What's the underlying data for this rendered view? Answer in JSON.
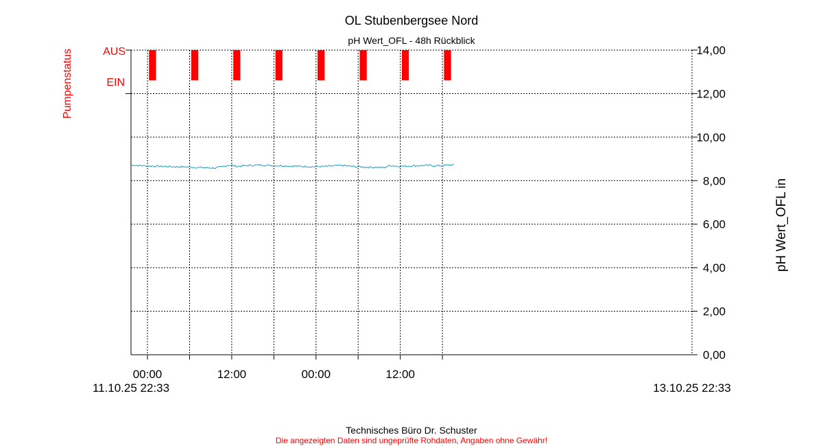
{
  "chart_data": {
    "type": "line",
    "title": "OL Stubenbergsee Nord",
    "subtitle": "pH Wert_OFL - 48h Rückblick",
    "y_right_label": "pH Wert_OFL in",
    "y_left_label": "Pumpenstatus",
    "ylim": [
      0,
      14
    ],
    "y_ticks": [
      "0,00",
      "2,00",
      "4,00",
      "6,00",
      "8,00",
      "10,00",
      "12,00",
      "14,00"
    ],
    "x_ticks": [
      "00:00",
      "12:00",
      "00:00",
      "12:00"
    ],
    "x_start_label": "11.10.25 22:33",
    "x_end_label": "13.10.25 22:33",
    "grid": true,
    "pump_state_labels": {
      "off": "AUS",
      "on": "EIN"
    },
    "pump_on_intervals_hours": [
      [
        1.2,
        2.2
      ],
      [
        7.2,
        8.2
      ],
      [
        13.2,
        14.2
      ],
      [
        19.2,
        20.2
      ],
      [
        25.2,
        26.2
      ],
      [
        31.2,
        32.2
      ],
      [
        37.2,
        38.2
      ],
      [
        43.2,
        44.2
      ]
    ],
    "series": [
      {
        "color": "#1a9fc4",
        "x_hours": [
          0,
          2,
          4,
          6,
          8,
          10,
          12,
          13,
          14,
          15,
          16,
          17,
          18,
          20,
          22,
          24,
          26,
          28,
          30,
          32,
          34,
          36,
          37,
          38,
          40,
          42,
          44,
          46
        ],
        "values": [
          8.72,
          8.68,
          8.66,
          8.64,
          8.63,
          8.6,
          8.58,
          8.64,
          8.72,
          8.66,
          8.68,
          8.7,
          8.72,
          8.7,
          8.68,
          8.66,
          8.64,
          8.66,
          8.7,
          8.64,
          8.62,
          8.6,
          8.7,
          8.66,
          8.68,
          8.7,
          8.68,
          8.74
        ]
      }
    ]
  },
  "footer": {
    "company": "Technisches Büro Dr. Schuster",
    "disclaimer": "Die angezeigten Daten sind ungeprüfte Rohdaten, Angaben ohne Gewähr!"
  },
  "colors": {
    "pump": "#ff0000",
    "series": "#1a9fc4",
    "grid": "#000000"
  }
}
